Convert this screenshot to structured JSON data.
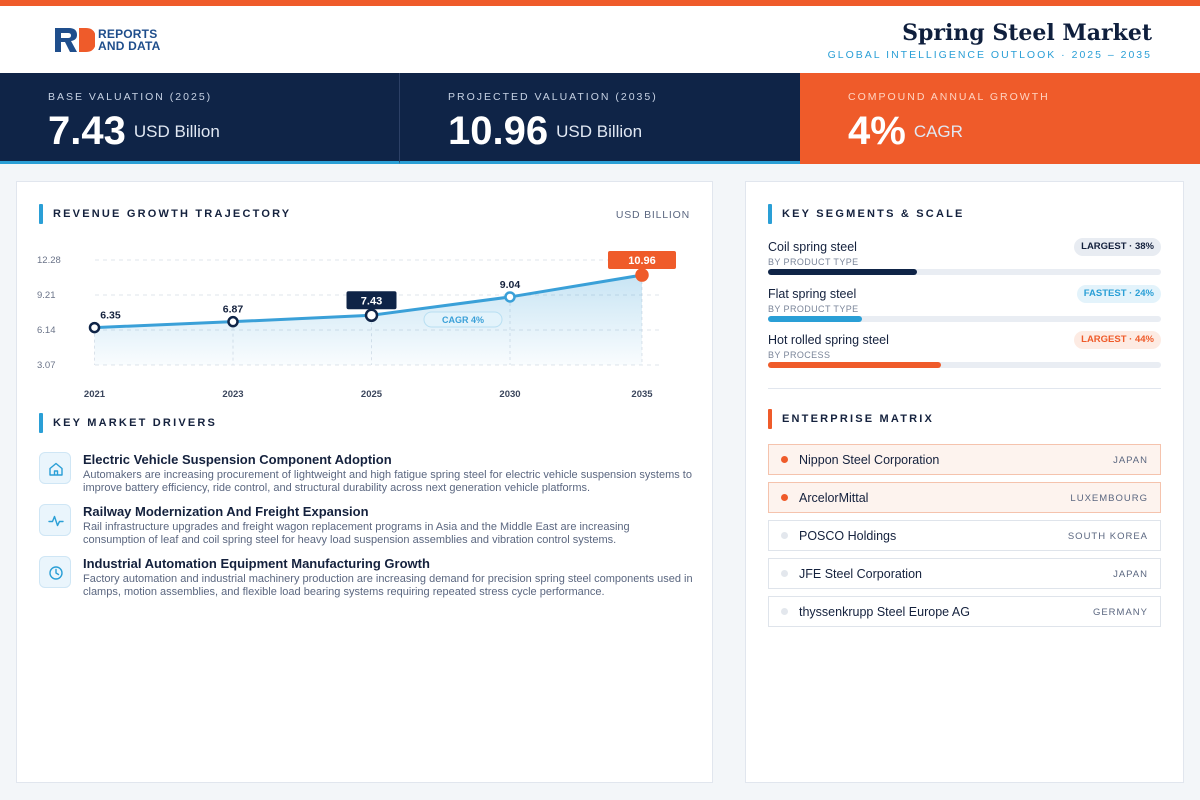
{
  "header": {
    "logo_line1": "REPORTS",
    "logo_line2": "AND DATA",
    "title": "Spring Steel Market",
    "subtitle": "GLOBAL INTELLIGENCE OUTLOOK  ·  2025 – 2035"
  },
  "kpis": [
    {
      "label": "BASE VALUATION (2025)",
      "value": "7.43",
      "unit": "USD Billion"
    },
    {
      "label": "PROJECTED VALUATION (2035)",
      "value": "10.96",
      "unit": "USD Billion"
    },
    {
      "label": "COMPOUND ANNUAL GROWTH",
      "value": "4%",
      "unit": "CAGR"
    }
  ],
  "trajectory": {
    "title": "REVENUE GROWTH TRAJECTORY",
    "unit": "USD BILLION",
    "cagr_label": "CAGR 4%"
  },
  "chart_data": {
    "type": "line",
    "categories": [
      "2021",
      "2023",
      "2025",
      "2030",
      "2035"
    ],
    "values": [
      6.35,
      6.87,
      7.43,
      9.04,
      10.96
    ],
    "value_labels": [
      "6.35",
      "6.87",
      "7.43",
      "9.04",
      "10.96"
    ],
    "y_ticks": [
      "12.28",
      "9.21",
      "6.14",
      "3.07"
    ],
    "ylim": [
      3.07,
      12.28
    ],
    "highlight": {
      "2025": "navy",
      "2035": "orange"
    },
    "annotation": "CAGR 4%",
    "grid": true,
    "line_color": "#3aa0d8",
    "highlight_colors": {
      "navy": "#0f2447",
      "orange": "#ef5b2a"
    }
  },
  "drivers": {
    "title": "KEY MARKET DRIVERS",
    "items": [
      {
        "icon": "home-icon",
        "title": "Electric Vehicle Suspension Component Adoption",
        "desc": "Automakers are increasing procurement of lightweight and high fatigue spring steel for electric vehicle suspension systems to improve battery efficiency, ride control, and structural durability across next generation vehicle platforms."
      },
      {
        "icon": "pulse-icon",
        "title": "Railway Modernization And Freight Expansion",
        "desc": "Rail infrastructure upgrades and freight wagon replacement programs in Asia and the Middle East are increasing consumption of leaf and coil spring steel for heavy load suspension assemblies and vibration control systems."
      },
      {
        "icon": "clock-icon",
        "title": "Industrial Automation Equipment Manufacturing Growth",
        "desc": "Factory automation and industrial machinery production are increasing demand for precision spring steel components used in clamps, motion assemblies, and flexible load bearing systems requiring repeated stress cycle performance."
      }
    ]
  },
  "segments": {
    "title": "KEY SEGMENTS & SCALE",
    "items": [
      {
        "name": "Coil spring steel",
        "sub": "BY PRODUCT TYPE",
        "badge": "LARGEST · 38%",
        "share": 0.38,
        "color": "#0f2447"
      },
      {
        "name": "Flat spring steel",
        "sub": "BY PRODUCT TYPE",
        "badge": "FASTEST · 24%",
        "share": 0.24,
        "color": "#2a9fd6"
      },
      {
        "name": "Hot rolled spring steel",
        "sub": "BY PROCESS",
        "badge": "LARGEST · 44%",
        "share": 0.44,
        "color": "#ef5b2a"
      }
    ]
  },
  "enterprise": {
    "title": "ENTERPRISE MATRIX",
    "items": [
      {
        "name": "Nippon Steel Corporation",
        "country": "JAPAN"
      },
      {
        "name": "ArcelorMittal",
        "country": "LUXEMBOURG"
      },
      {
        "name": "POSCO Holdings",
        "country": "SOUTH KOREA"
      },
      {
        "name": "JFE Steel Corporation",
        "country": "JAPAN"
      },
      {
        "name": "thyssenkrupp Steel Europe AG",
        "country": "GERMANY"
      }
    ]
  }
}
